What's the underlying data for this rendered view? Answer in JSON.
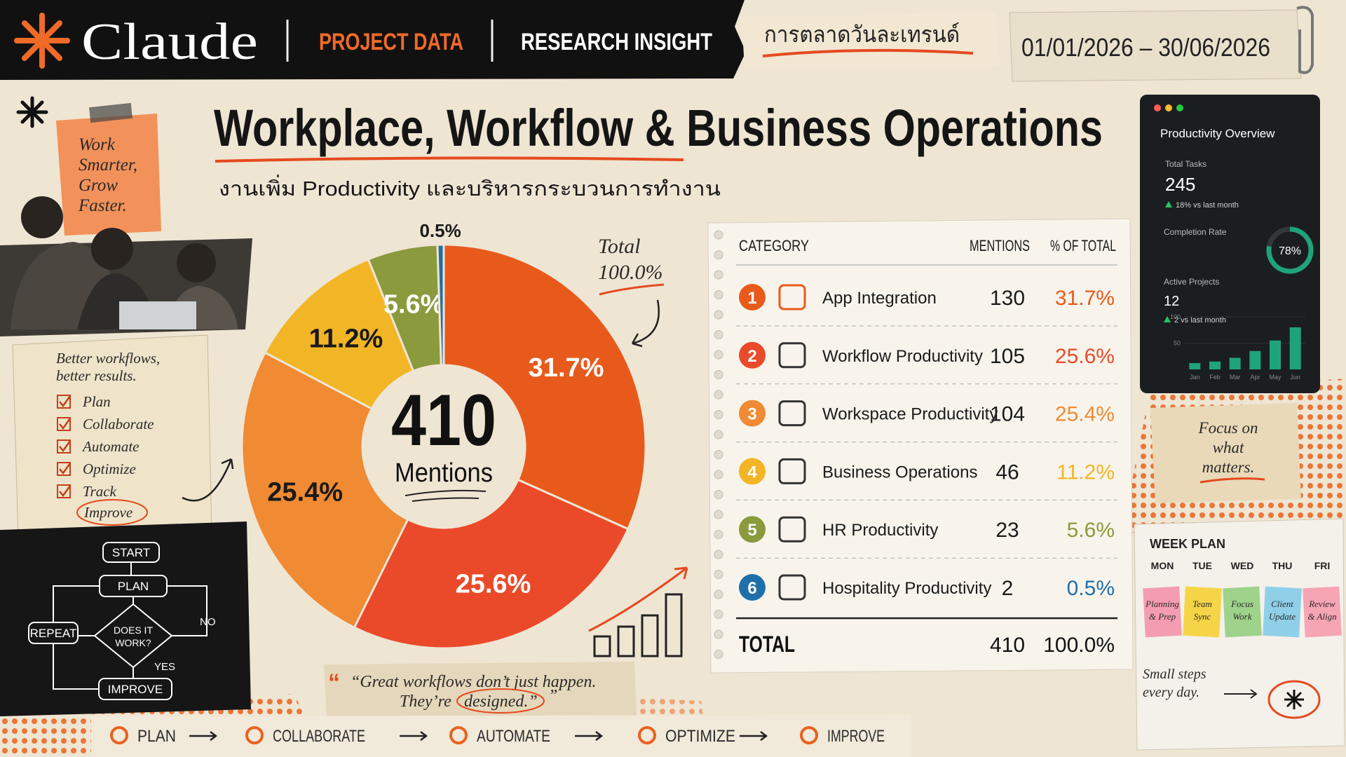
{
  "header": {
    "brand": "Claude",
    "tags": [
      "PROJECT DATA",
      "RESEARCH INSIGHT"
    ],
    "thai_tag": "การตลาดวันละเทรนด์",
    "date_range": "01/01/2026 – 30/06/2026"
  },
  "title": "Workplace, Workflow & Business Operations",
  "subtitle": "งานเพิ่ม Productivity และบริหารกระบวนการทำงาน",
  "sticky_note": [
    "Work",
    "Smarter,",
    "Grow",
    "Faster."
  ],
  "checklist": {
    "heading": [
      "Better workflows,",
      "better results."
    ],
    "items": [
      "Plan",
      "Collaborate",
      "Automate",
      "Optimize",
      "Track"
    ],
    "circled": "Improve"
  },
  "flowchart": {
    "start": "START",
    "plan": "PLAN",
    "decision": [
      "DOES IT",
      "WORK?"
    ],
    "yes": "YES",
    "no": "NO",
    "repeat": "REPEAT",
    "improve": "IMPROVE"
  },
  "chart_data": [
    {
      "type": "pie",
      "donut": true,
      "categories": [
        "App Integration",
        "Workflow Productivity",
        "Workspace Productivity",
        "Business Operations",
        "HR Productivity",
        "Hospitality Productivity"
      ],
      "values": [
        31.7,
        25.6,
        25.4,
        11.2,
        5.6,
        0.5
      ],
      "value_labels": [
        "31.7%",
        "25.6%",
        "25.4%",
        "11.2%",
        "5.6%",
        "0.5%"
      ],
      "colors": [
        "#e85a1b",
        "#ea4a2a",
        "#f08a33",
        "#f2b526",
        "#8a9a3c",
        "#1f6fa8"
      ],
      "center": {
        "value": 410,
        "label": "Mentions"
      }
    },
    {
      "type": "bar",
      "categories": [
        "Jan",
        "Feb",
        "Mar",
        "Apr",
        "May",
        "Jun"
      ],
      "values": [
        12,
        15,
        22,
        35,
        55,
        80
      ],
      "ylim": [
        0,
        100
      ],
      "yticks": [
        50,
        100
      ],
      "color": "#1fa37c"
    }
  ],
  "total_note": "Total",
  "table": {
    "headers": [
      "CATEGORY",
      "MENTIONS",
      "% OF TOTAL"
    ],
    "rows": [
      {
        "rank": 1,
        "mentions": 130
      },
      {
        "rank": 2,
        "mentions": 105
      },
      {
        "rank": 3,
        "mentions": 104
      },
      {
        "rank": 4,
        "mentions": 46
      },
      {
        "rank": 5,
        "mentions": 23
      },
      {
        "rank": 6,
        "mentions": 2
      }
    ],
    "total": {
      "label": "TOTAL",
      "mentions": 410,
      "percent": "100.0%"
    }
  },
  "quote": {
    "line1": "“Great workflows don’t just happen.",
    "line2": "They’re",
    "circled": "designed.”",
    "end": "”"
  },
  "overview": {
    "title": "Productivity Overview",
    "total_tasks": {
      "label": "Total Tasks",
      "value": 245,
      "change": "18% vs last month"
    },
    "completion": {
      "label": "Completion Rate",
      "value": 78,
      "value_label": "78%"
    },
    "active_projects": {
      "label": "Active Projects",
      "value": 12,
      "change": "2 vs last month"
    }
  },
  "focus_note": [
    "Focus on",
    "what",
    "matters."
  ],
  "week_plan": {
    "title": "WEEK PLAN",
    "days": [
      "MON",
      "TUE",
      "WED",
      "THU",
      "FRI"
    ],
    "tasks": [
      [
        "Planning",
        "& Prep"
      ],
      [
        "Team",
        "Sync"
      ],
      [
        "Focus",
        "Work"
      ],
      [
        "Client",
        "Update"
      ],
      [
        "Review",
        "& Align"
      ]
    ],
    "colors": [
      "#f59db0",
      "#f5d547",
      "#9fd28a",
      "#8fd0e8",
      "#f6a5b5"
    ],
    "note": [
      "Small steps",
      "every day."
    ]
  },
  "steps": [
    "PLAN",
    "COLLABORATE",
    "AUTOMATE",
    "OPTIMIZE",
    "IMPROVE"
  ]
}
